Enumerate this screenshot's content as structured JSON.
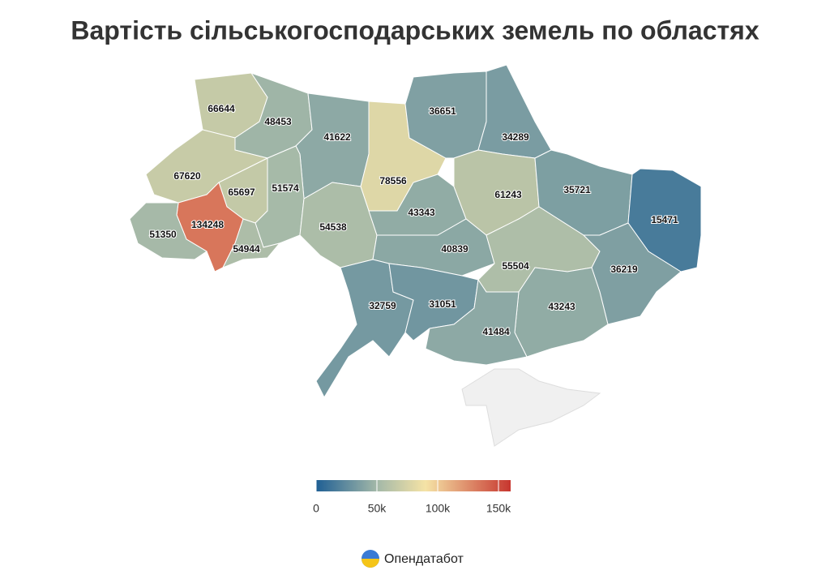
{
  "chart_data": {
    "type": "choropleth",
    "title": "Вартість сільськогосподарських земель по областях",
    "values": [
      66644,
      48453,
      41622,
      78556,
      36651,
      34289,
      67620,
      65697,
      51574,
      134248,
      51350,
      54944,
      54538,
      43343,
      61243,
      35721,
      15471,
      40839,
      55504,
      36219,
      32759,
      31051,
      43243,
      41484
    ],
    "no_data_color": "#f0f0f0",
    "colorscale": [
      {
        "value": 0,
        "color": "#1f5f94"
      },
      {
        "value": 50000,
        "color": "#a3b8a8"
      },
      {
        "value": 90000,
        "color": "#f5e3a6"
      },
      {
        "value": 160000,
        "color": "#c7362f"
      }
    ],
    "colorbar_lim": [
      0,
      160000
    ],
    "colorbar_ticks": [
      0,
      {
        "value": 50000,
        "label": "50k"
      },
      {
        "value": 100000,
        "label": "100k"
      },
      {
        "value": 150000,
        "label": "150k"
      }
    ],
    "brand": "Опендатабот"
  }
}
